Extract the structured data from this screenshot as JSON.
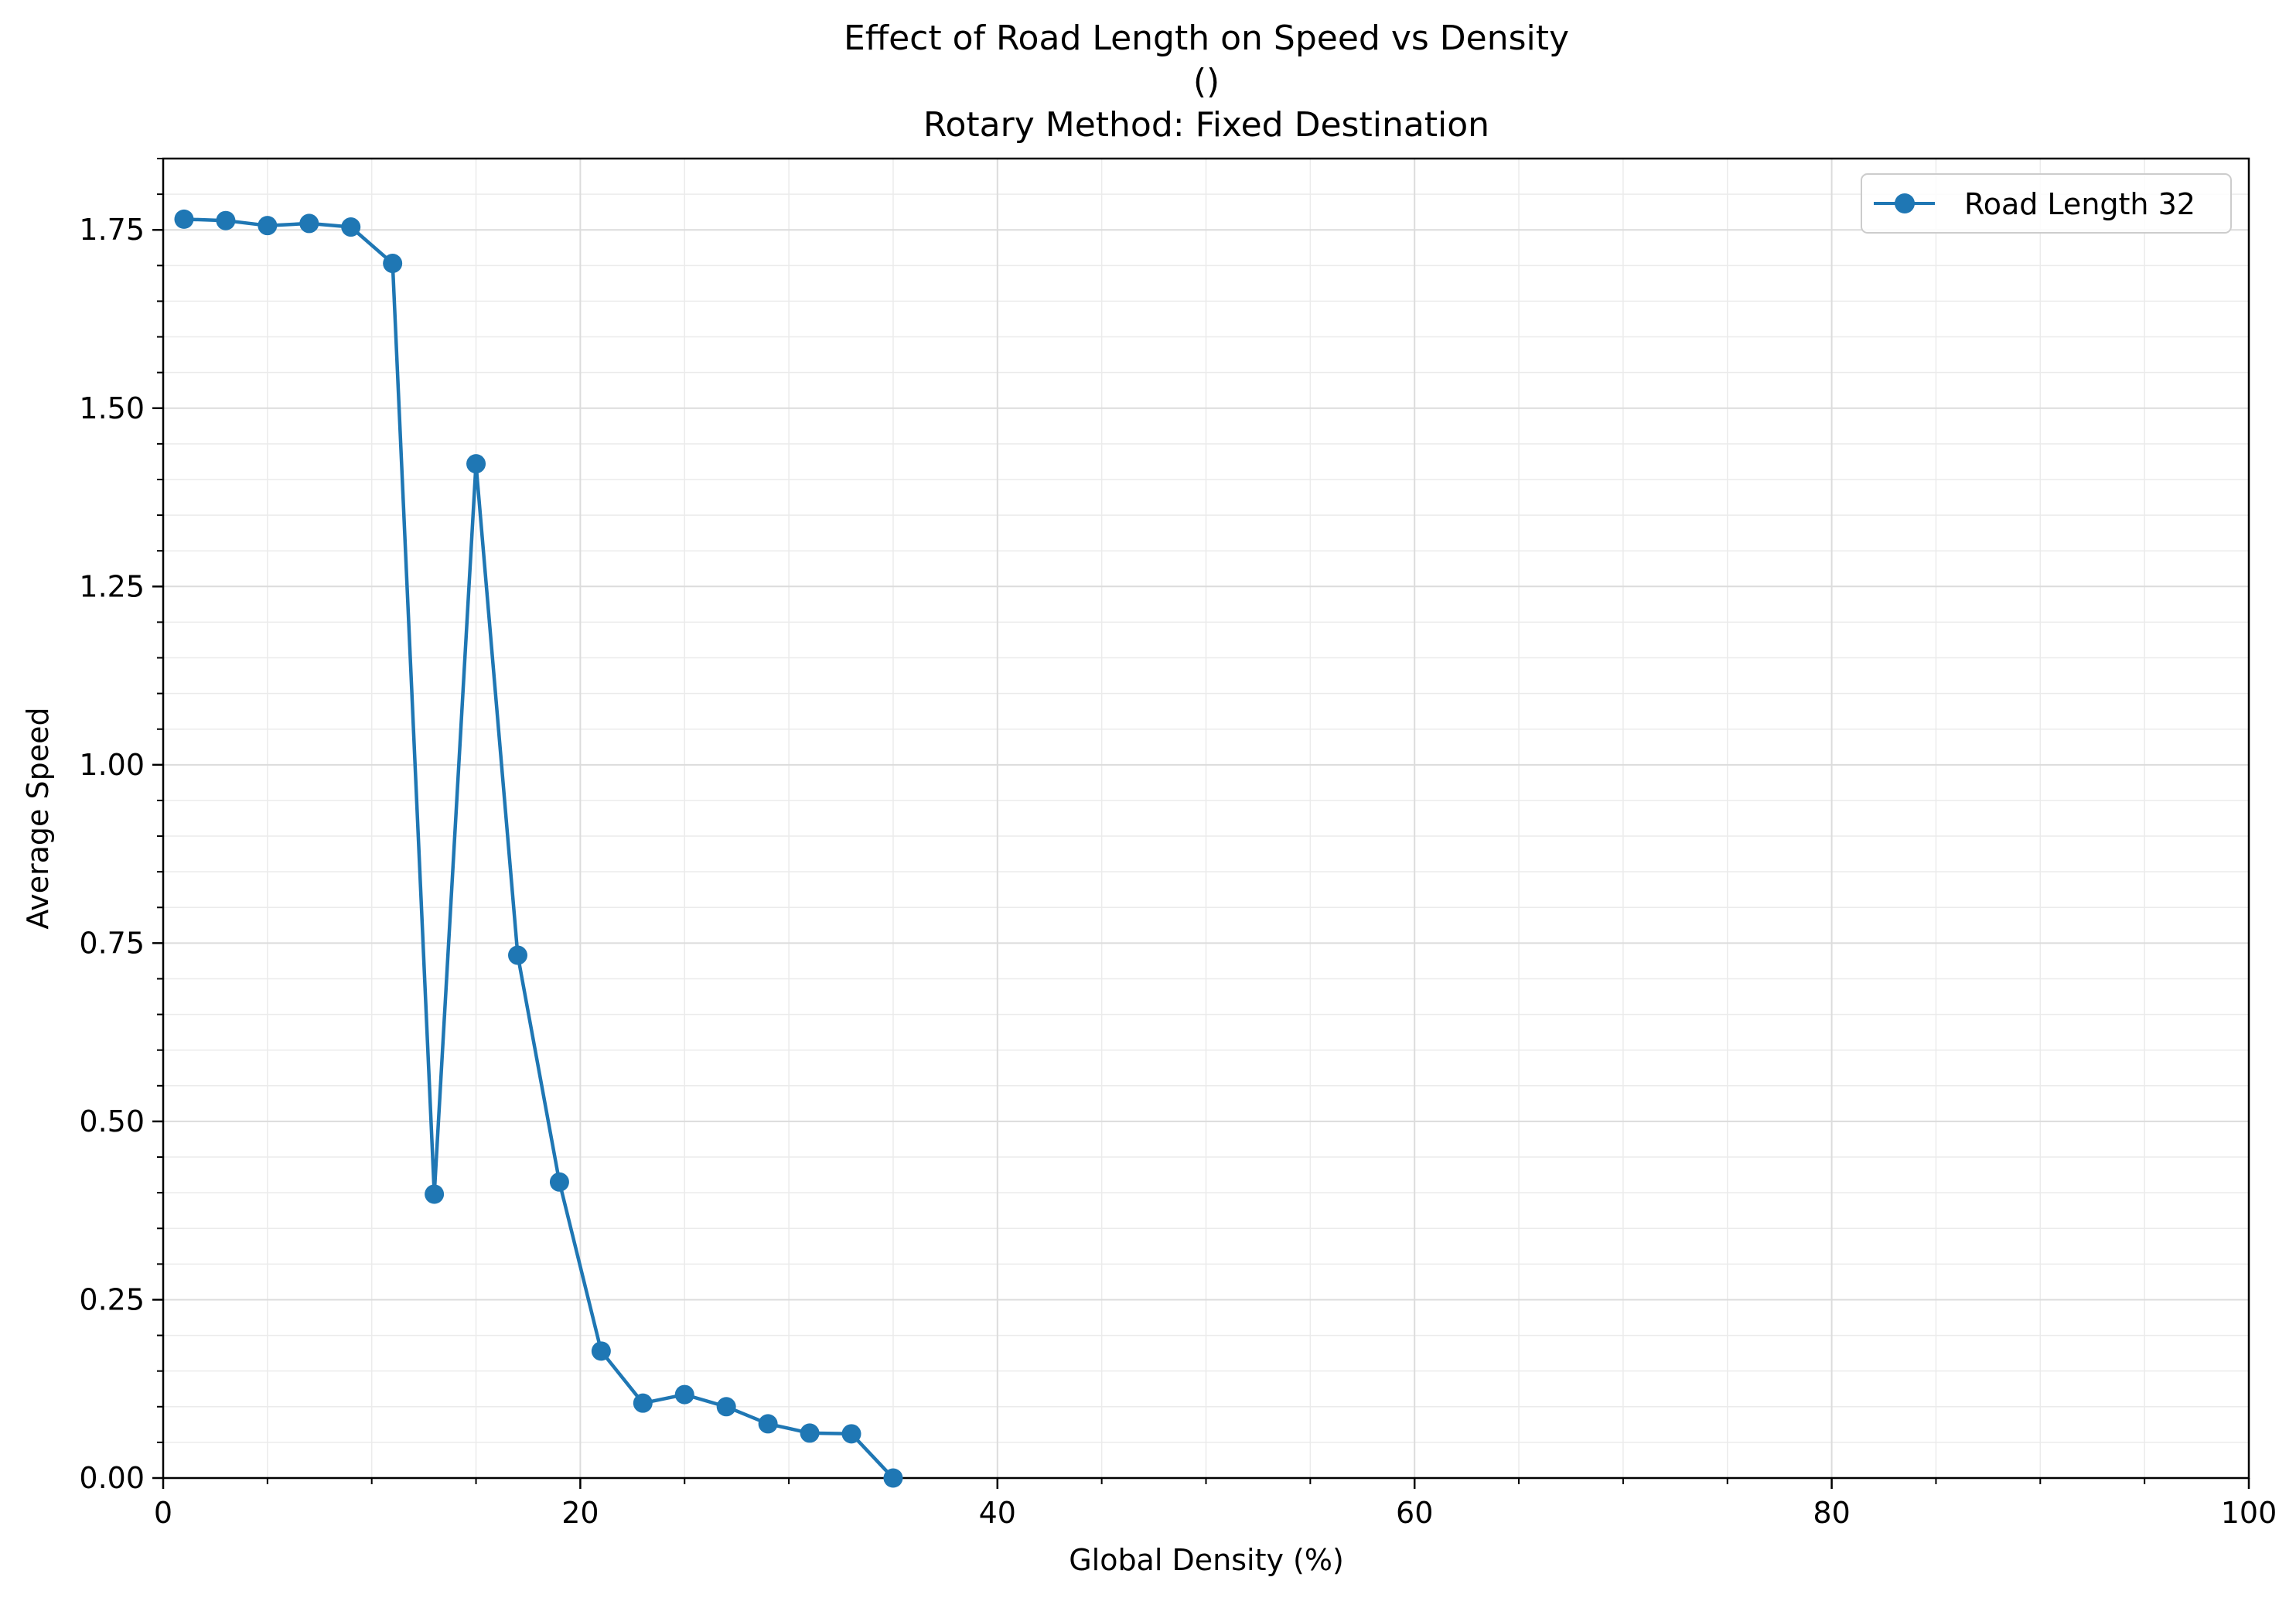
{
  "chart_data": {
    "type": "line",
    "title_lines": [
      "Effect of Road Length on Speed vs Density",
      "()",
      "Rotary Method: Fixed Destination"
    ],
    "xlabel": "Global Density (%)",
    "ylabel": "Average Speed",
    "xlim": [
      0,
      100
    ],
    "ylim": [
      0,
      1.85
    ],
    "x_ticks": [
      0,
      20,
      40,
      60,
      80,
      100
    ],
    "x_tick_labels": [
      "0",
      "20",
      "40",
      "60",
      "80",
      "100"
    ],
    "x_minor_step": 5,
    "y_ticks": [
      0,
      0.25,
      0.5,
      0.75,
      1.0,
      1.25,
      1.5,
      1.75
    ],
    "y_tick_labels": [
      "0.00",
      "0.25",
      "0.50",
      "0.75",
      "1.00",
      "1.25",
      "1.50",
      "1.75"
    ],
    "y_minor_step": 0.05,
    "grid": true,
    "legend_position": "top-right",
    "series": [
      {
        "name": "Road Length 32",
        "color": "#1f77b4",
        "marker": "circle",
        "x": [
          1,
          3,
          5,
          7,
          9,
          11,
          13,
          15,
          17,
          19,
          21,
          23,
          25,
          27,
          29,
          31,
          33,
          35
        ],
        "y": [
          1.765,
          1.763,
          1.756,
          1.759,
          1.754,
          1.703,
          0.398,
          1.422,
          0.733,
          0.415,
          0.178,
          0.105,
          0.117,
          0.1,
          0.076,
          0.063,
          0.062,
          0.0
        ]
      }
    ]
  }
}
